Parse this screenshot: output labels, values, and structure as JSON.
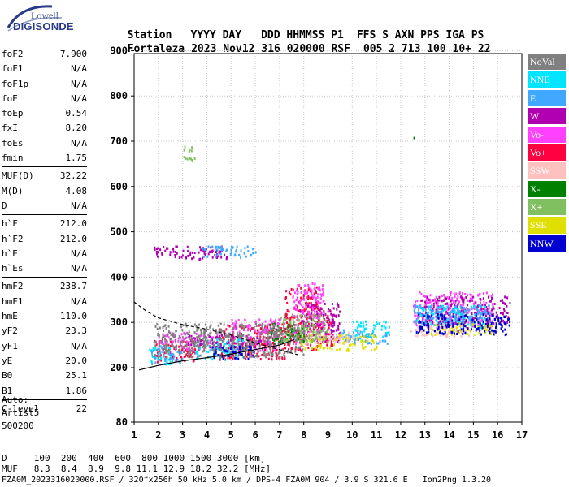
{
  "logo": {
    "top": "Lowell",
    "bottom": "DIGISONDE"
  },
  "header": {
    "labels": [
      "Station",
      "YYYY DAY",
      "DDD HHMMSS P1",
      "FFS S AXN PPS IGA PS"
    ],
    "values": [
      "Fortaleza",
      "2023 Nov12",
      "316 020000 RSF",
      "005 2 713 100 10+ 22"
    ]
  },
  "params": [
    {
      "group": [
        {
          "name": "foF2",
          "value": "7.900"
        },
        {
          "name": "foF1",
          "value": "N/A"
        },
        {
          "name": "foF1p",
          "value": "N/A"
        },
        {
          "name": "foE",
          "value": "N/A"
        },
        {
          "name": "foEp",
          "value": "0.54"
        },
        {
          "name": "fxI",
          "value": "8.20"
        },
        {
          "name": "foEs",
          "value": "N/A"
        },
        {
          "name": "fmin",
          "value": "1.75"
        }
      ]
    },
    {
      "group": [
        {
          "name": "MUF(D)",
          "value": "32.22"
        },
        {
          "name": "M(D)",
          "value": "4.08"
        },
        {
          "name": "D",
          "value": "N/A"
        }
      ]
    },
    {
      "group": [
        {
          "name": "h`F",
          "value": "212.0"
        },
        {
          "name": "h`F2",
          "value": "212.0"
        },
        {
          "name": "h`E",
          "value": "N/A"
        },
        {
          "name": "h`Es",
          "value": "N/A"
        }
      ]
    },
    {
      "group": [
        {
          "name": "hmF2",
          "value": "238.7"
        },
        {
          "name": "hmF1",
          "value": "N/A"
        },
        {
          "name": "hmE",
          "value": "110.0"
        },
        {
          "name": "yF2",
          "value": "23.3"
        },
        {
          "name": "yF1",
          "value": "N/A"
        },
        {
          "name": "yE",
          "value": "20.0"
        },
        {
          "name": "B0",
          "value": "25.1"
        },
        {
          "name": "B1",
          "value": "1.86"
        }
      ]
    },
    {
      "group": [
        {
          "name": "C-level",
          "value": "22"
        }
      ]
    }
  ],
  "auto": [
    "Auto:",
    "Artist5",
    "500200"
  ],
  "legend": [
    {
      "label": "NoVal",
      "color": "#808080"
    },
    {
      "label": "NNE",
      "color": "#00e5ff"
    },
    {
      "label": "E",
      "color": "#40a8ff"
    },
    {
      "label": "W",
      "color": "#b000b0"
    },
    {
      "label": "Vo-",
      "color": "#ff40ff"
    },
    {
      "label": "Vo+",
      "color": "#ff0040"
    },
    {
      "label": "SSW",
      "color": "#ffc0c0"
    },
    {
      "label": "X-",
      "color": "#008000"
    },
    {
      "label": "X+",
      "color": "#80c060"
    },
    {
      "label": "SSE",
      "color": "#e0e000"
    },
    {
      "label": "NNW",
      "color": "#0000d0"
    }
  ],
  "footer": {
    "line1": "D     100  200  400  600  800 1000 1500 3000 [km]",
    "line2": "MUF   8.3  8.4  8.9  9.8 11.1 12.9 18.2 32.2 [MHz]",
    "line3": "FZA0M_2023316020000.RSF / 320fx256h 50 kHz 5.0 km / DPS-4 FZA0M 904 / 3.9 S 321.6 E   Ion2Png 1.3.20"
  },
  "chart_data": {
    "type": "scatter",
    "xlim": [
      1,
      17
    ],
    "ylim": [
      80,
      900
    ],
    "x_ticks": [
      "1",
      "2",
      "3",
      "4",
      "5",
      "6",
      "7",
      "8",
      "9",
      "10",
      "11",
      "12",
      "13",
      "14",
      "15",
      "16",
      "17"
    ],
    "y_ticks": [
      "900",
      "800",
      "700",
      "600",
      "500",
      "400",
      "300",
      "200",
      "80"
    ],
    "y_tick_values": [
      900,
      800,
      700,
      600,
      500,
      400,
      300,
      200,
      80
    ],
    "grid": true,
    "series": [
      {
        "color": "#ff0040",
        "clusters": [
          [
            1.8,
            3.6,
            215,
            265
          ],
          [
            4.5,
            7.2,
            220,
            300
          ],
          [
            7.2,
            8.6,
            240,
            380
          ],
          [
            8.5,
            9.2,
            250,
            330
          ]
        ]
      },
      {
        "color": "#ff40ff",
        "clusters": [
          [
            2.0,
            4.5,
            240,
            280
          ],
          [
            5.0,
            7.0,
            240,
            310
          ],
          [
            7.5,
            8.8,
            250,
            390
          ],
          [
            12.5,
            15.8,
            290,
            370
          ]
        ]
      },
      {
        "color": "#b000b0",
        "clusters": [
          [
            1.8,
            4.8,
            440,
            470
          ],
          [
            3.2,
            6.5,
            245,
            275
          ],
          [
            7.8,
            9.5,
            260,
            345
          ],
          [
            12.8,
            16.5,
            300,
            360
          ]
        ]
      },
      {
        "color": "#00e5ff",
        "clusters": [
          [
            1.6,
            2.5,
            210,
            250
          ],
          [
            3.5,
            5.5,
            220,
            265
          ],
          [
            10.0,
            11.5,
            270,
            305
          ],
          [
            12.6,
            15.5,
            290,
            340
          ]
        ]
      },
      {
        "color": "#40a8ff",
        "clusters": [
          [
            1.7,
            3.0,
            210,
            245
          ],
          [
            3.8,
            6.0,
            445,
            470
          ],
          [
            9.5,
            11.5,
            255,
            285
          ],
          [
            12.5,
            15.7,
            295,
            340
          ]
        ]
      },
      {
        "color": "#e0e000",
        "clusters": [
          [
            7.8,
            11.0,
            240,
            275
          ],
          [
            13.2,
            15.8,
            275,
            300
          ]
        ]
      },
      {
        "color": "#ffc0c0",
        "clusters": [
          [
            12.4,
            15.0,
            270,
            300
          ],
          [
            8.0,
            10.0,
            255,
            280
          ]
        ]
      },
      {
        "color": "#0000d0",
        "clusters": [
          [
            12.6,
            16.5,
            275,
            320
          ],
          [
            4.0,
            6.0,
            220,
            250
          ]
        ]
      },
      {
        "color": "#008000",
        "clusters": [
          [
            6.5,
            8.0,
            255,
            300
          ],
          [
            12.5,
            12.6,
            700,
            715
          ]
        ]
      },
      {
        "color": "#80c060",
        "clusters": [
          [
            7.0,
            9.0,
            260,
            320
          ],
          [
            3.0,
            3.5,
            660,
            690
          ]
        ]
      },
      {
        "color": "#808080",
        "clusters": [
          [
            1.8,
            8.0,
            225,
            300
          ]
        ]
      }
    ],
    "profile": [
      [
        1.0,
        345
      ],
      [
        1.5,
        325
      ],
      [
        2.0,
        310
      ],
      [
        3.0,
        295
      ],
      [
        4.0,
        285
      ],
      [
        5.0,
        272
      ],
      [
        6.0,
        255
      ],
      [
        7.0,
        240
      ],
      [
        7.5,
        232
      ],
      [
        7.8,
        228
      ]
    ],
    "profile2": [
      [
        1.2,
        195
      ],
      [
        2.0,
        205
      ],
      [
        3.0,
        215
      ],
      [
        4.0,
        222
      ],
      [
        5.0,
        230
      ],
      [
        6.0,
        240
      ],
      [
        7.0,
        250
      ],
      [
        7.6,
        262
      ]
    ]
  }
}
